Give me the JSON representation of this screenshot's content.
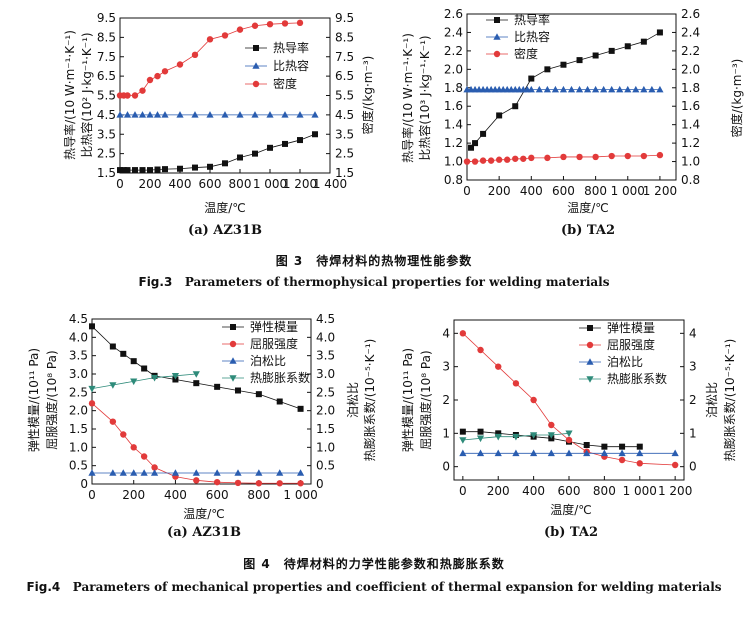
{
  "figures": [
    {
      "cn": "图 3　待焊材料的热物理性能参数",
      "en_id": "Fig.3",
      "en_text": "Parameters of thermophysical properties for welding materials"
    },
    {
      "cn": "图 4　待焊材料的力学性能参数和热膨胀系数",
      "en_id": "Fig.4",
      "en_text": "Parameters of mechanical properties and coefficient of thermal expansion for welding materials"
    }
  ],
  "chart_data": [
    {
      "id": "fig3a",
      "caption": "(a) AZ31B",
      "type": "line",
      "xlabel": "温度/℃",
      "ylabel_left": [
        "热导率/(10 W·m⁻¹·K⁻¹)",
        "比热容(10² J·kg⁻¹·K⁻¹)"
      ],
      "ylabel_right": [
        "密度/(kg·m⁻³)"
      ],
      "xlim": [
        0,
        1400
      ],
      "xticks": [
        0,
        200,
        400,
        600,
        800,
        1000,
        1200,
        1400
      ],
      "xtick_labels": [
        "0",
        "200",
        "400",
        "600",
        "800",
        "1 000",
        "1 200",
        "1 400"
      ],
      "ylim": [
        1.5,
        9.5
      ],
      "yticks": [
        1.5,
        2.5,
        3.5,
        4.5,
        5.5,
        6.5,
        7.5,
        8.5,
        9.5
      ],
      "ytick_labels": [
        "1.5",
        "2.5",
        "3.5",
        "4.5",
        "5.5",
        "6.5",
        "7.5",
        "8.5",
        "9.5"
      ],
      "y2lim": [
        1.5,
        9.5
      ],
      "y2ticks": [
        1.5,
        2.5,
        3.5,
        4.5,
        5.5,
        6.5,
        7.5,
        8.5,
        9.5
      ],
      "y2tick_labels": [
        "1.5",
        "2.5",
        "3.5",
        "4.5",
        "5.5",
        "6.5",
        "7.5",
        "8.5",
        "9.5"
      ],
      "legend_position": "top-right",
      "series": [
        {
          "name": "热导率",
          "marker": "square",
          "color": "#111111",
          "x": [
            0,
            25,
            50,
            100,
            150,
            200,
            250,
            300,
            400,
            500,
            600,
            700,
            800,
            900,
            1000,
            1100,
            1200,
            1300
          ],
          "y": [
            1.65,
            1.65,
            1.65,
            1.65,
            1.65,
            1.65,
            1.68,
            1.7,
            1.72,
            1.78,
            1.82,
            2.0,
            2.3,
            2.5,
            2.8,
            3.0,
            3.2,
            3.5
          ]
        },
        {
          "name": "比热容",
          "marker": "triangle",
          "color": "#2a5db0",
          "x": [
            0,
            50,
            100,
            150,
            200,
            250,
            300,
            400,
            500,
            600,
            700,
            800,
            900,
            1000,
            1100,
            1200,
            1300
          ],
          "y": [
            4.5,
            4.5,
            4.5,
            4.5,
            4.5,
            4.5,
            4.5,
            4.5,
            4.5,
            4.5,
            4.5,
            4.5,
            4.5,
            4.5,
            4.5,
            4.5,
            4.5
          ]
        },
        {
          "name": "密度",
          "marker": "circle",
          "color": "#e23a3a",
          "x": [
            0,
            25,
            50,
            100,
            150,
            200,
            250,
            300,
            400,
            500,
            600,
            700,
            800,
            900,
            1000,
            1100,
            1200
          ],
          "y": [
            5.5,
            5.5,
            5.5,
            5.5,
            5.75,
            6.3,
            6.5,
            6.75,
            7.1,
            7.6,
            8.4,
            8.6,
            8.9,
            9.1,
            9.18,
            9.22,
            9.25
          ]
        }
      ]
    },
    {
      "id": "fig3b",
      "caption": "(b) TA2",
      "type": "line",
      "xlabel": "温度/℃",
      "ylabel_left": [
        "热导率/(10 W·m⁻¹·K⁻¹)",
        "比热容(10³ J·kg⁻¹·K⁻¹)"
      ],
      "ylabel_right": [
        "密度/(kg·m⁻³)"
      ],
      "xlim": [
        0,
        1300
      ],
      "xticks": [
        0,
        200,
        400,
        600,
        800,
        1000,
        1200
      ],
      "xtick_labels": [
        "0",
        "200",
        "400",
        "600",
        "800",
        "1 000",
        "1 200"
      ],
      "ylim": [
        0.8,
        2.6
      ],
      "yticks": [
        0.8,
        1.0,
        1.2,
        1.4,
        1.6,
        1.8,
        2.0,
        2.2,
        2.4,
        2.6
      ],
      "ytick_labels": [
        "0.8",
        "1.0",
        "1.2",
        "1.4",
        "1.6",
        "1.8",
        "2.0",
        "2.2",
        "2.4",
        "2.6"
      ],
      "y2lim": [
        0.8,
        2.6
      ],
      "y2ticks": [
        0.8,
        1.0,
        1.2,
        1.4,
        1.6,
        1.8,
        2.0,
        2.2,
        2.4,
        2.6
      ],
      "y2tick_labels": [
        "0.8",
        "1.0",
        "1.2",
        "1.4",
        "1.6",
        "1.8",
        "2.0",
        "2.2",
        "2.4",
        "2.6"
      ],
      "legend_position": "top-left",
      "series": [
        {
          "name": "热导率",
          "marker": "square",
          "color": "#111111",
          "x": [
            25,
            50,
            100,
            200,
            300,
            400,
            500,
            600,
            700,
            800,
            900,
            1000,
            1100,
            1200
          ],
          "y": [
            1.15,
            1.2,
            1.3,
            1.5,
            1.6,
            1.9,
            2.0,
            2.05,
            2.1,
            2.15,
            2.2,
            2.25,
            2.3,
            2.4
          ]
        },
        {
          "name": "比热容",
          "marker": "triangle",
          "color": "#2a5db0",
          "x": [
            0,
            25,
            50,
            75,
            100,
            125,
            150,
            175,
            200,
            225,
            250,
            275,
            300,
            325,
            350,
            375,
            400,
            450,
            500,
            550,
            600,
            650,
            700,
            750,
            800,
            850,
            900,
            950,
            1000,
            1050,
            1100,
            1150,
            1200
          ],
          "y": [
            1.78,
            1.78,
            1.78,
            1.78,
            1.78,
            1.78,
            1.78,
            1.78,
            1.78,
            1.78,
            1.78,
            1.78,
            1.78,
            1.78,
            1.78,
            1.78,
            1.78,
            1.78,
            1.78,
            1.78,
            1.78,
            1.78,
            1.78,
            1.78,
            1.78,
            1.78,
            1.78,
            1.78,
            1.78,
            1.78,
            1.78,
            1.78,
            1.78
          ]
        },
        {
          "name": "密度",
          "marker": "circle",
          "color": "#e23a3a",
          "x": [
            0,
            50,
            100,
            150,
            200,
            250,
            300,
            350,
            400,
            500,
            600,
            700,
            800,
            900,
            1000,
            1100,
            1200
          ],
          "y": [
            1.0,
            1.0,
            1.01,
            1.01,
            1.02,
            1.02,
            1.03,
            1.03,
            1.04,
            1.04,
            1.05,
            1.05,
            1.05,
            1.06,
            1.06,
            1.06,
            1.07
          ]
        }
      ]
    },
    {
      "id": "fig4a",
      "caption": "(a) AZ31B",
      "type": "line",
      "xlabel": "温度/℃",
      "ylabel_left": [
        "弹性模量/(10¹¹ Pa)",
        "屈服强度/(10⁸ Pa)"
      ],
      "ylabel_right": [
        "泊松比",
        "热膨胀系数/(10⁻⁵·K⁻¹)"
      ],
      "xlim": [
        0,
        1050
      ],
      "xticks": [
        0,
        200,
        400,
        600,
        800,
        1000
      ],
      "xtick_labels": [
        "0",
        "200",
        "400",
        "600",
        "800",
        "1 000"
      ],
      "ylim": [
        0,
        4.5
      ],
      "yticks": [
        0,
        0.5,
        1.0,
        1.5,
        2.0,
        2.5,
        3.0,
        3.5,
        4.0,
        4.5
      ],
      "ytick_labels": [
        "0",
        "0.5",
        "1.0",
        "1.5",
        "2.0",
        "2.5",
        "3.0",
        "3.5",
        "4.0",
        "4.5"
      ],
      "y2lim": [
        0,
        4.5
      ],
      "y2ticks": [
        0,
        0.5,
        1.0,
        1.5,
        2.0,
        2.5,
        3.0,
        3.5,
        4.0,
        4.5
      ],
      "y2tick_labels": [
        "0",
        "0.5",
        "1.0",
        "1.5",
        "2.0",
        "2.5",
        "3.0",
        "3.5",
        "4.0",
        "4.5"
      ],
      "legend_position": "top-right",
      "series": [
        {
          "name": "弹性模量",
          "marker": "square",
          "color": "#111111",
          "x": [
            0,
            100,
            150,
            200,
            250,
            300,
            400,
            500,
            600,
            700,
            800,
            900,
            1000
          ],
          "y": [
            4.3,
            3.75,
            3.55,
            3.35,
            3.15,
            2.95,
            2.85,
            2.75,
            2.65,
            2.55,
            2.45,
            2.25,
            2.05
          ]
        },
        {
          "name": "屈服强度",
          "marker": "circle",
          "color": "#e23a3a",
          "x": [
            0,
            100,
            150,
            200,
            250,
            300,
            400,
            500,
            600,
            700,
            800,
            900,
            1000
          ],
          "y": [
            2.2,
            1.7,
            1.35,
            1.0,
            0.75,
            0.45,
            0.2,
            0.1,
            0.05,
            0.03,
            0.02,
            0.02,
            0.02
          ]
        },
        {
          "name": "泊松比",
          "marker": "triangle",
          "color": "#2a5db0",
          "x": [
            0,
            100,
            150,
            200,
            250,
            300,
            400,
            500,
            600,
            700,
            800,
            900,
            1000
          ],
          "y": [
            0.3,
            0.3,
            0.3,
            0.3,
            0.3,
            0.3,
            0.3,
            0.3,
            0.3,
            0.3,
            0.3,
            0.3,
            0.3
          ]
        },
        {
          "name": "热膨胀系数",
          "marker": "triangle-down",
          "color": "#2e8b7a",
          "x": [
            0,
            100,
            200,
            300,
            400,
            500
          ],
          "y": [
            2.6,
            2.7,
            2.8,
            2.9,
            2.95,
            3.0
          ]
        }
      ]
    },
    {
      "id": "fig4b",
      "caption": "(b) TA2",
      "type": "line",
      "xlabel": "温度/℃",
      "ylabel_left": [
        "弹性模量/(10¹¹ Pa)",
        "屈服强度/(10⁸ Pa)"
      ],
      "ylabel_right": [
        "泊松比",
        "热膨胀系数/(10⁻⁵·K⁻¹)"
      ],
      "xlim": [
        -50,
        1250
      ],
      "xticks": [
        0,
        200,
        400,
        600,
        800,
        1000,
        1200
      ],
      "xtick_labels": [
        "0",
        "200",
        "400",
        "600",
        "800",
        "1 000",
        "1 200"
      ],
      "ylim": [
        -0.4,
        4.4
      ],
      "yticks": [
        0,
        1,
        2,
        3,
        4
      ],
      "ytick_labels": [
        "0",
        "1",
        "2",
        "3",
        "4"
      ],
      "y2lim": [
        -0.4,
        4.4
      ],
      "y2ticks": [
        0,
        1,
        2,
        3,
        4
      ],
      "y2tick_labels": [
        "0",
        "1",
        "2",
        "3",
        "4"
      ],
      "legend_position": "top-right",
      "series": [
        {
          "name": "弹性模量",
          "marker": "square",
          "color": "#111111",
          "x": [
            0,
            100,
            200,
            300,
            400,
            500,
            600,
            700,
            800,
            900,
            1000
          ],
          "y": [
            1.05,
            1.05,
            1.0,
            0.95,
            0.9,
            0.85,
            0.75,
            0.65,
            0.6,
            0.6,
            0.6
          ]
        },
        {
          "name": "屈服强度",
          "marker": "circle",
          "color": "#e23a3a",
          "x": [
            0,
            100,
            200,
            300,
            400,
            500,
            600,
            700,
            800,
            900,
            1000,
            1200
          ],
          "y": [
            4.0,
            3.5,
            3.0,
            2.5,
            2.0,
            1.25,
            0.8,
            0.45,
            0.3,
            0.2,
            0.1,
            0.05
          ]
        },
        {
          "name": "泊松比",
          "marker": "triangle",
          "color": "#2a5db0",
          "x": [
            0,
            100,
            200,
            300,
            400,
            500,
            600,
            700,
            800,
            900,
            1000,
            1200
          ],
          "y": [
            0.4,
            0.4,
            0.4,
            0.4,
            0.4,
            0.4,
            0.4,
            0.4,
            0.4,
            0.4,
            0.4,
            0.4
          ]
        },
        {
          "name": "热膨胀系数",
          "marker": "triangle-down",
          "color": "#2e8b7a",
          "x": [
            0,
            100,
            200,
            300,
            400,
            500,
            600
          ],
          "y": [
            0.8,
            0.85,
            0.9,
            0.9,
            0.95,
            0.95,
            1.0
          ]
        }
      ]
    }
  ]
}
